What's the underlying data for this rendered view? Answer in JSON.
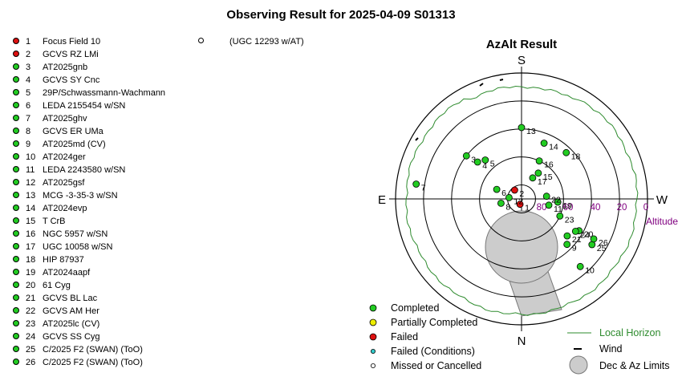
{
  "title": "Observing Result for 2025-04-09 S01313",
  "colors": {
    "completed": "#22cc22",
    "partial": "#eeee00",
    "failed": "#dd1111",
    "failed_conditions": "#33cccc",
    "horizon": "#2e8b2e",
    "altitude": "#800080",
    "limits": "#cccccc"
  },
  "targets": [
    {
      "n": "1",
      "name": "Focus Field 10",
      "status": "failed"
    },
    {
      "n": "2",
      "name": "GCVS RZ LMi",
      "status": "failed"
    },
    {
      "n": "3",
      "name": "AT2025gnb",
      "status": "completed"
    },
    {
      "n": "4",
      "name": "GCVS SY Cnc",
      "status": "completed"
    },
    {
      "n": "5",
      "name": "29P/Schwassmann-Wachmann",
      "status": "completed"
    },
    {
      "n": "6",
      "name": "LEDA 2155454 w/SN",
      "status": "completed"
    },
    {
      "n": "7",
      "name": "AT2025ghv",
      "status": "completed"
    },
    {
      "n": "8",
      "name": "GCVS ER UMa",
      "status": "completed"
    },
    {
      "n": "9",
      "name": "AT2025md (CV)",
      "status": "completed"
    },
    {
      "n": "10",
      "name": "AT2024ger",
      "status": "completed"
    },
    {
      "n": "11",
      "name": "LEDA 2243580 w/SN",
      "status": "completed"
    },
    {
      "n": "12",
      "name": "AT2025gsf",
      "status": "completed"
    },
    {
      "n": "13",
      "name": "MCG -3-35-3 w/SN",
      "status": "completed"
    },
    {
      "n": "14",
      "name": "AT2024evp",
      "status": "completed"
    },
    {
      "n": "15",
      "name": "T CrB",
      "status": "completed"
    },
    {
      "n": "16",
      "name": "NGC 5957 w/SN",
      "status": "completed"
    },
    {
      "n": "17",
      "name": "UGC 10058 w/SN",
      "status": "completed"
    },
    {
      "n": "18",
      "name": "HIP 87937",
      "status": "completed"
    },
    {
      "n": "19",
      "name": "AT2024aapf",
      "status": "completed"
    },
    {
      "n": "20",
      "name": "61 Cyg",
      "status": "completed"
    },
    {
      "n": "21",
      "name": "GCVS BL Lac",
      "status": "completed"
    },
    {
      "n": "22",
      "name": "GCVS AM Her",
      "status": "completed"
    },
    {
      "n": "23",
      "name": "AT2025lc (CV)",
      "status": "completed"
    },
    {
      "n": "24",
      "name": "GCVS SS Cyg",
      "status": "completed"
    },
    {
      "n": "25",
      "name": "C/2025 F2 (SWAN) (ToO)",
      "status": "completed"
    },
    {
      "n": "26",
      "name": "C/2025 F2 (SWAN) (ToO)",
      "status": "completed"
    }
  ],
  "missed": {
    "label": "(UGC 12293 w/AT)"
  },
  "chart_data": {
    "type": "scatter",
    "title": "AzAlt Result",
    "directions": {
      "top": "S",
      "bottom": "N",
      "left": "E",
      "right": "W"
    },
    "ring_labels": [
      "80",
      "60",
      "40",
      "20",
      "0"
    ],
    "altitude_label": "Altitude",
    "points": [
      {
        "label": "1",
        "az": 344,
        "alt": 86,
        "status": "failed"
      },
      {
        "label": "2",
        "az": 218,
        "alt": 82,
        "status": "failed"
      },
      {
        "label": "3",
        "az": 232,
        "alt": 40,
        "status": "completed"
      },
      {
        "label": "4",
        "az": 230,
        "alt": 49,
        "status": "completed"
      },
      {
        "label": "5",
        "az": 223,
        "alt": 52,
        "status": "completed"
      },
      {
        "label": "6",
        "az": 249,
        "alt": 71,
        "status": "completed"
      },
      {
        "label": "7",
        "az": 262,
        "alt": 14,
        "status": "completed"
      },
      {
        "label": "8",
        "az": 282,
        "alt": 75,
        "status": "completed"
      },
      {
        "label": "9",
        "az": 45,
        "alt": 44,
        "status": "completed"
      },
      {
        "label": "10",
        "az": 41,
        "alt": 26,
        "status": "completed"
      },
      {
        "label": "11",
        "az": 77,
        "alt": 70,
        "status": "completed"
      },
      {
        "label": "12",
        "az": 264,
        "alt": 81,
        "status": "completed"
      },
      {
        "label": "13",
        "az": 180,
        "alt": 39,
        "status": "completed"
      },
      {
        "label": "14",
        "az": 158,
        "alt": 47,
        "status": "completed"
      },
      {
        "label": "15",
        "az": 147,
        "alt": 68,
        "status": "completed"
      },
      {
        "label": "16",
        "az": 155,
        "alt": 60,
        "status": "completed"
      },
      {
        "label": "17",
        "az": 152,
        "alt": 73,
        "status": "completed"
      },
      {
        "label": "18",
        "az": 136,
        "alt": 44,
        "status": "completed"
      },
      {
        "label": "19",
        "az": 85,
        "alt": 64,
        "status": "completed"
      },
      {
        "label": "20",
        "az": 61,
        "alt": 43,
        "status": "completed"
      },
      {
        "label": "21",
        "az": 51,
        "alt": 48,
        "status": "completed"
      },
      {
        "label": "22",
        "az": 96,
        "alt": 72,
        "status": "completed"
      },
      {
        "label": "23",
        "az": 66,
        "alt": 60,
        "status": "completed"
      },
      {
        "label": "24",
        "az": 59,
        "alt": 45,
        "status": "completed"
      },
      {
        "label": "25",
        "az": 57,
        "alt": 30,
        "status": "completed"
      },
      {
        "label": "26",
        "az": 61,
        "alt": 31,
        "status": "completed"
      }
    ]
  },
  "legend": {
    "completed": "Completed",
    "partial": "Partially Completed",
    "failed": "Failed",
    "failed_conditions": "Failed (Conditions)",
    "missed": "Missed or Cancelled",
    "horizon": "Local Horizon",
    "wind": "Wind",
    "limits": "Dec & Az Limits"
  }
}
